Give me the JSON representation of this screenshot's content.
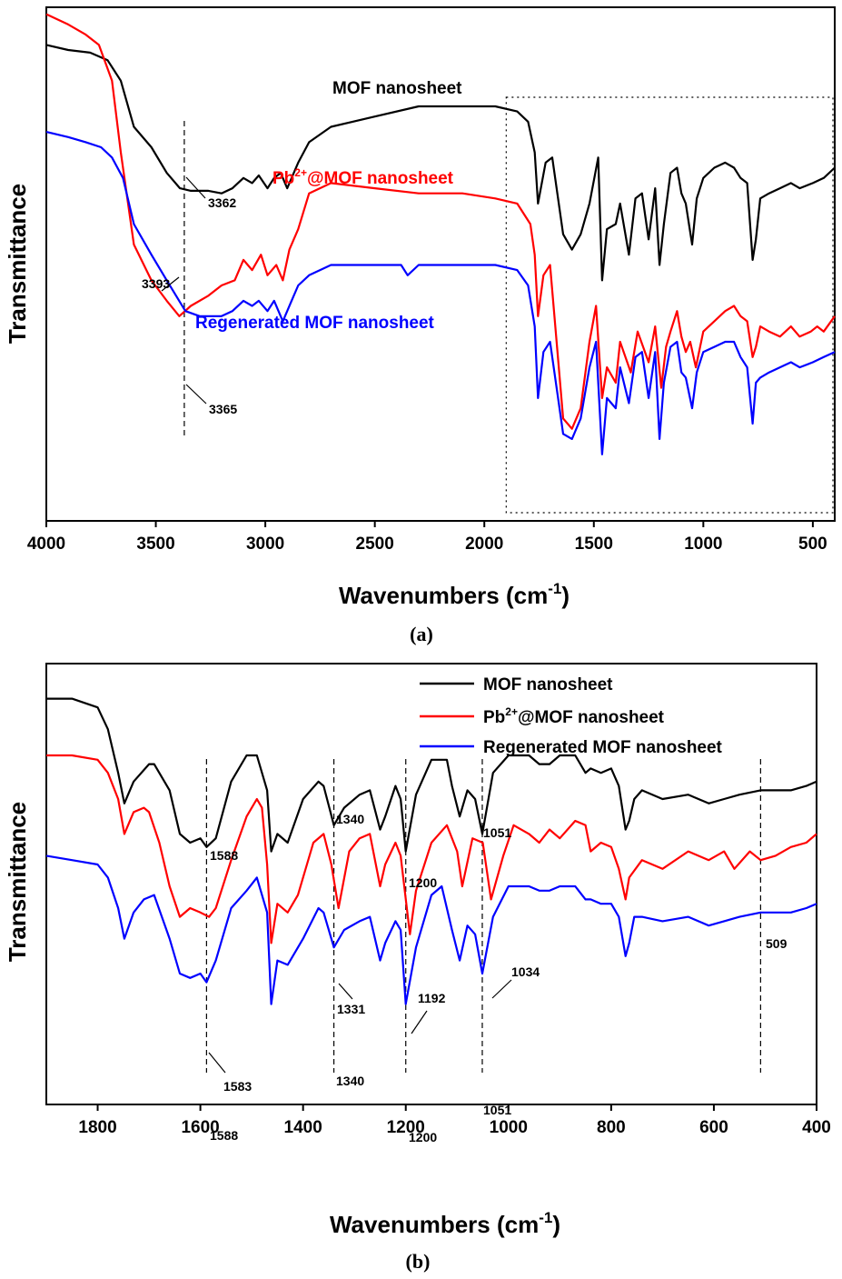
{
  "chart_data": [
    {
      "type": "line",
      "panel_label": "(a)",
      "xlabel": "Wavenumbers (cm",
      "xlabel_sup": "-1",
      "xlabel_close": ")",
      "ylabel": "Transmittance",
      "xlim": [
        4000,
        400
      ],
      "x_ticks": [
        4000,
        3500,
        3000,
        2500,
        2000,
        1500,
        1000,
        500
      ],
      "grid": false,
      "series_labels": [
        {
          "text": "MOF nanosheet",
          "color": "#000000"
        },
        {
          "text": "Pb",
          "sup": "2+",
          "text_after": "@MOF nanosheet",
          "color": "#ff0000"
        },
        {
          "text": "Regenerated MOF nanosheet",
          "color": "#0000ff"
        }
      ],
      "annotations": [
        {
          "text": "3362"
        },
        {
          "text": "3393"
        },
        {
          "text": "3365"
        }
      ],
      "reference_lines": [
        3370
      ],
      "zoom_box": [
        1900,
        400
      ],
      "series": [
        {
          "name": "MOF nanosheet",
          "color": "#000000",
          "x": [
            4000,
            3900,
            3800,
            3720,
            3660,
            3600,
            3520,
            3450,
            3390,
            3340,
            3260,
            3200,
            3150,
            3100,
            3060,
            3030,
            2990,
            2960,
            2930,
            2900,
            2850,
            2800,
            2700,
            2500,
            2300,
            2100,
            1950,
            1850,
            1800,
            1770,
            1755,
            1720,
            1690,
            1640,
            1600,
            1560,
            1520,
            1480,
            1462,
            1440,
            1400,
            1380,
            1340,
            1310,
            1280,
            1250,
            1220,
            1200,
            1180,
            1150,
            1120,
            1100,
            1080,
            1051,
            1030,
            1000,
            950,
            900,
            860,
            830,
            800,
            775,
            760,
            740,
            700,
            650,
            600,
            560,
            500,
            450,
            400
          ],
          "y": [
            0.93,
            0.92,
            0.915,
            0.9,
            0.86,
            0.77,
            0.73,
            0.68,
            0.65,
            0.645,
            0.645,
            0.64,
            0.65,
            0.67,
            0.66,
            0.675,
            0.65,
            0.67,
            0.68,
            0.65,
            0.7,
            0.74,
            0.77,
            0.79,
            0.81,
            0.81,
            0.81,
            0.8,
            0.78,
            0.72,
            0.62,
            0.7,
            0.71,
            0.56,
            0.53,
            0.56,
            0.62,
            0.71,
            0.47,
            0.57,
            0.58,
            0.62,
            0.52,
            0.63,
            0.64,
            0.55,
            0.65,
            0.5,
            0.58,
            0.68,
            0.69,
            0.64,
            0.62,
            0.54,
            0.63,
            0.67,
            0.69,
            0.7,
            0.69,
            0.67,
            0.66,
            0.51,
            0.55,
            0.63,
            0.64,
            0.65,
            0.66,
            0.65,
            0.66,
            0.67,
            0.69
          ]
        },
        {
          "name": "Pb2+@MOF nanosheet",
          "color": "#ff0000",
          "x": [
            4000,
            3900,
            3820,
            3760,
            3700,
            3660,
            3600,
            3520,
            3450,
            3393,
            3340,
            3260,
            3200,
            3140,
            3100,
            3060,
            3020,
            2990,
            2950,
            2920,
            2890,
            2850,
            2800,
            2700,
            2500,
            2300,
            2100,
            1950,
            1850,
            1790,
            1770,
            1755,
            1730,
            1700,
            1640,
            1600,
            1560,
            1520,
            1490,
            1462,
            1440,
            1400,
            1380,
            1331,
            1300,
            1250,
            1220,
            1192,
            1170,
            1150,
            1120,
            1100,
            1080,
            1060,
            1034,
            1000,
            950,
            900,
            860,
            830,
            800,
            775,
            760,
            740,
            700,
            650,
            600,
            560,
            509,
            480,
            450,
            400
          ],
          "y": [
            0.99,
            0.97,
            0.95,
            0.93,
            0.86,
            0.72,
            0.54,
            0.47,
            0.43,
            0.4,
            0.42,
            0.44,
            0.46,
            0.47,
            0.51,
            0.49,
            0.52,
            0.48,
            0.5,
            0.47,
            0.53,
            0.57,
            0.64,
            0.66,
            0.65,
            0.64,
            0.64,
            0.63,
            0.62,
            0.58,
            0.52,
            0.4,
            0.48,
            0.5,
            0.2,
            0.18,
            0.22,
            0.35,
            0.42,
            0.24,
            0.3,
            0.27,
            0.35,
            0.29,
            0.37,
            0.31,
            0.38,
            0.26,
            0.34,
            0.37,
            0.41,
            0.36,
            0.33,
            0.35,
            0.3,
            0.37,
            0.39,
            0.41,
            0.42,
            0.4,
            0.39,
            0.32,
            0.34,
            0.38,
            0.37,
            0.36,
            0.38,
            0.36,
            0.37,
            0.38,
            0.37,
            0.4
          ]
        },
        {
          "name": "Regenerated MOF nanosheet",
          "color": "#0000ff",
          "x": [
            4000,
            3900,
            3820,
            3750,
            3700,
            3650,
            3600,
            3520,
            3450,
            3365,
            3300,
            3250,
            3200,
            3150,
            3100,
            3060,
            3030,
            2990,
            2960,
            2920,
            2880,
            2850,
            2800,
            2700,
            2500,
            2380,
            2350,
            2300,
            2100,
            1950,
            1850,
            1800,
            1770,
            1755,
            1730,
            1700,
            1640,
            1600,
            1560,
            1520,
            1490,
            1462,
            1440,
            1400,
            1380,
            1340,
            1310,
            1280,
            1250,
            1220,
            1200,
            1180,
            1150,
            1120,
            1100,
            1080,
            1051,
            1030,
            1000,
            950,
            900,
            860,
            830,
            800,
            775,
            760,
            740,
            700,
            650,
            600,
            560,
            500,
            450,
            400
          ],
          "y": [
            0.76,
            0.75,
            0.74,
            0.73,
            0.71,
            0.67,
            0.58,
            0.52,
            0.47,
            0.41,
            0.4,
            0.4,
            0.4,
            0.41,
            0.43,
            0.42,
            0.43,
            0.41,
            0.43,
            0.39,
            0.43,
            0.46,
            0.48,
            0.5,
            0.5,
            0.5,
            0.48,
            0.5,
            0.5,
            0.5,
            0.49,
            0.46,
            0.38,
            0.24,
            0.33,
            0.35,
            0.17,
            0.16,
            0.2,
            0.3,
            0.35,
            0.13,
            0.24,
            0.22,
            0.3,
            0.23,
            0.32,
            0.33,
            0.24,
            0.33,
            0.16,
            0.27,
            0.34,
            0.35,
            0.29,
            0.28,
            0.22,
            0.29,
            0.33,
            0.34,
            0.35,
            0.35,
            0.32,
            0.3,
            0.19,
            0.27,
            0.28,
            0.29,
            0.3,
            0.31,
            0.3,
            0.31,
            0.32,
            0.33
          ]
        }
      ]
    },
    {
      "type": "line",
      "panel_label": "(b)",
      "xlabel": "Wavenumbers (cm",
      "xlabel_sup": "-1",
      "xlabel_close": ")",
      "ylabel": "Transmittance",
      "xlim": [
        1900,
        400
      ],
      "x_ticks": [
        1800,
        1600,
        1400,
        1200,
        1000,
        800,
        600,
        400
      ],
      "grid": false,
      "legend": {
        "placement": "top-right",
        "entries": [
          {
            "text": "MOF nanosheet",
            "color": "#000000"
          },
          {
            "text": "Pb",
            "sup": "2+",
            "text_after": "@MOF nanosheet",
            "color": "#ff0000"
          },
          {
            "text": "Regenerated MOF nanosheet",
            "color": "#0000ff"
          }
        ]
      },
      "annotations": [
        {
          "text": "1588"
        },
        {
          "text": "1340"
        },
        {
          "text": "1200"
        },
        {
          "text": "1051"
        },
        {
          "text": "509"
        },
        {
          "text": "1331"
        },
        {
          "text": "1192"
        },
        {
          "text": "1034"
        },
        {
          "text": "1583"
        },
        {
          "text": "1340"
        },
        {
          "text": "1588"
        },
        {
          "text": "1200"
        },
        {
          "text": "1051"
        }
      ],
      "reference_lines": [
        1588,
        1340,
        1200,
        1051,
        509
      ],
      "series": [
        {
          "name": "MOF nanosheet",
          "color": "#000000",
          "x": [
            1900,
            1850,
            1800,
            1780,
            1760,
            1748,
            1730,
            1700,
            1690,
            1660,
            1640,
            1620,
            1600,
            1588,
            1570,
            1540,
            1510,
            1490,
            1470,
            1462,
            1450,
            1430,
            1400,
            1370,
            1360,
            1340,
            1320,
            1290,
            1270,
            1250,
            1240,
            1220,
            1210,
            1200,
            1180,
            1150,
            1120,
            1110,
            1095,
            1080,
            1065,
            1051,
            1030,
            1000,
            960,
            940,
            920,
            900,
            870,
            850,
            840,
            820,
            800,
            785,
            772,
            765,
            755,
            740,
            700,
            650,
            610,
            580,
            550,
            509,
            480,
            450,
            420,
            400
          ],
          "y": [
            0.93,
            0.93,
            0.91,
            0.86,
            0.76,
            0.69,
            0.74,
            0.78,
            0.78,
            0.72,
            0.62,
            0.6,
            0.61,
            0.59,
            0.61,
            0.74,
            0.8,
            0.8,
            0.72,
            0.58,
            0.62,
            0.6,
            0.7,
            0.74,
            0.73,
            0.64,
            0.68,
            0.71,
            0.72,
            0.63,
            0.66,
            0.73,
            0.7,
            0.58,
            0.71,
            0.79,
            0.79,
            0.73,
            0.66,
            0.72,
            0.7,
            0.62,
            0.76,
            0.8,
            0.8,
            0.78,
            0.78,
            0.8,
            0.8,
            0.76,
            0.77,
            0.76,
            0.77,
            0.73,
            0.63,
            0.65,
            0.7,
            0.72,
            0.7,
            0.71,
            0.69,
            0.7,
            0.71,
            0.72,
            0.72,
            0.72,
            0.73,
            0.74
          ]
        },
        {
          "name": "Pb2+@MOF nanosheet",
          "color": "#ff0000",
          "x": [
            1900,
            1850,
            1800,
            1780,
            1760,
            1748,
            1730,
            1710,
            1700,
            1680,
            1660,
            1640,
            1620,
            1600,
            1583,
            1570,
            1540,
            1510,
            1490,
            1480,
            1470,
            1462,
            1450,
            1430,
            1410,
            1380,
            1360,
            1345,
            1331,
            1310,
            1290,
            1270,
            1250,
            1240,
            1220,
            1210,
            1192,
            1180,
            1150,
            1120,
            1100,
            1090,
            1070,
            1050,
            1034,
            1010,
            990,
            960,
            940,
            920,
            900,
            870,
            850,
            840,
            820,
            800,
            785,
            772,
            765,
            740,
            700,
            650,
            610,
            580,
            560,
            530,
            509,
            480,
            450,
            420,
            400
          ],
          "y": [
            0.8,
            0.8,
            0.79,
            0.76,
            0.7,
            0.62,
            0.67,
            0.68,
            0.67,
            0.6,
            0.5,
            0.43,
            0.45,
            0.44,
            0.43,
            0.45,
            0.56,
            0.66,
            0.7,
            0.68,
            0.55,
            0.37,
            0.46,
            0.44,
            0.48,
            0.6,
            0.62,
            0.55,
            0.45,
            0.58,
            0.61,
            0.62,
            0.5,
            0.55,
            0.6,
            0.57,
            0.39,
            0.49,
            0.6,
            0.64,
            0.58,
            0.5,
            0.61,
            0.6,
            0.47,
            0.57,
            0.64,
            0.62,
            0.6,
            0.63,
            0.61,
            0.65,
            0.64,
            0.58,
            0.6,
            0.59,
            0.54,
            0.47,
            0.52,
            0.56,
            0.54,
            0.58,
            0.56,
            0.58,
            0.54,
            0.58,
            0.56,
            0.57,
            0.59,
            0.6,
            0.62
          ]
        },
        {
          "name": "Regenerated MOF nanosheet",
          "color": "#0000ff",
          "x": [
            1900,
            1850,
            1800,
            1780,
            1760,
            1748,
            1730,
            1710,
            1690,
            1660,
            1640,
            1620,
            1600,
            1588,
            1570,
            1540,
            1510,
            1490,
            1470,
            1462,
            1450,
            1430,
            1400,
            1370,
            1360,
            1340,
            1320,
            1290,
            1270,
            1250,
            1240,
            1220,
            1210,
            1200,
            1180,
            1150,
            1130,
            1110,
            1095,
            1080,
            1065,
            1051,
            1030,
            1000,
            960,
            940,
            920,
            900,
            870,
            850,
            840,
            820,
            800,
            785,
            772,
            765,
            755,
            740,
            700,
            650,
            610,
            580,
            550,
            509,
            480,
            450,
            420,
            400
          ],
          "y": [
            0.57,
            0.56,
            0.55,
            0.52,
            0.45,
            0.38,
            0.44,
            0.47,
            0.48,
            0.38,
            0.3,
            0.29,
            0.3,
            0.28,
            0.33,
            0.45,
            0.49,
            0.52,
            0.44,
            0.23,
            0.33,
            0.32,
            0.38,
            0.45,
            0.44,
            0.36,
            0.4,
            0.42,
            0.43,
            0.33,
            0.37,
            0.42,
            0.4,
            0.23,
            0.36,
            0.48,
            0.5,
            0.4,
            0.33,
            0.41,
            0.39,
            0.3,
            0.43,
            0.5,
            0.5,
            0.49,
            0.49,
            0.5,
            0.5,
            0.47,
            0.47,
            0.46,
            0.46,
            0.43,
            0.34,
            0.37,
            0.43,
            0.43,
            0.42,
            0.43,
            0.41,
            0.42,
            0.43,
            0.44,
            0.44,
            0.44,
            0.45,
            0.46
          ]
        }
      ]
    }
  ]
}
